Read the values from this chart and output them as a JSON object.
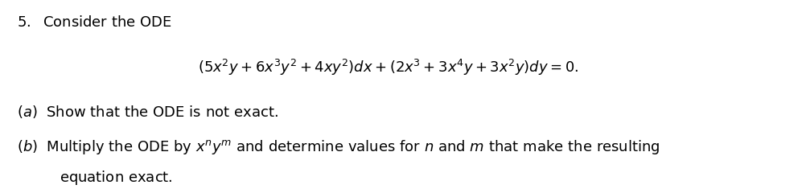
{
  "background_color": "#ffffff",
  "figsize": [
    10.03,
    2.35
  ],
  "dpi": 100,
  "title_text": "5.\\; \\text{Consider the ODE}",
  "equation": "(5x^2y + 6x^3y^2 + 4xy^2)dx + (2x^3 + 3x^4y + 3x^2y)dy = 0.",
  "part_a": "(a)\\; \\text{Show that the ODE is not exact.}",
  "part_b_line1": "(b)\\; \\text{Multiply the ODE by } x^n y^m \\text{ and determine values for } n \\text{ and } m \\text{ that make the resulting}",
  "part_b_line2": "\\text{equation exact.}",
  "text_color": "#000000",
  "font_size_main": 13,
  "font_size_eq": 13
}
